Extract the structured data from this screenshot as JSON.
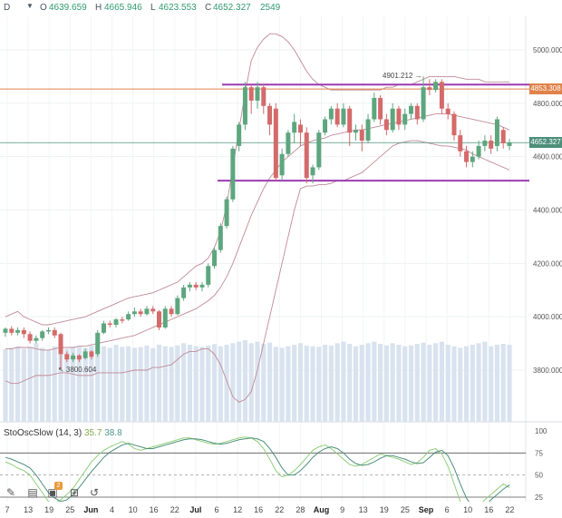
{
  "header": {
    "interval": "D",
    "open_label": "O",
    "open": "4639.659",
    "high_label": "H",
    "high": "4665.946",
    "low_label": "L",
    "low": "4623.553",
    "close_label": "C",
    "close": "4652.327",
    "volume": "2549"
  },
  "price_axis": {
    "ticks": [
      "5000.000",
      "4800.000",
      "4600.000",
      "4400.000",
      "4200.000",
      "4000.000",
      "3800.000"
    ],
    "orange_line_label": "4853.308",
    "current_price_label": "4652.327"
  },
  "annotations": {
    "high_marker": "4901.212",
    "low_marker": "3800.604"
  },
  "oscillator": {
    "name": "StoOscSlow (14, 3)",
    "k_value": "35.7",
    "d_value": "38.8",
    "ticks": [
      "100",
      "75",
      "50",
      "25"
    ]
  },
  "x_axis": {
    "labels": [
      {
        "text": "7",
        "bold": false
      },
      {
        "text": "13",
        "bold": false
      },
      {
        "text": "19",
        "bold": false
      },
      {
        "text": "25",
        "bold": false
      },
      {
        "text": "Jun",
        "bold": true
      },
      {
        "text": "4",
        "bold": false
      },
      {
        "text": "10",
        "bold": false
      },
      {
        "text": "16",
        "bold": false
      },
      {
        "text": "22",
        "bold": false
      },
      {
        "text": "Jul",
        "bold": true
      },
      {
        "text": "6",
        "bold": false
      },
      {
        "text": "12",
        "bold": false
      },
      {
        "text": "16",
        "bold": false
      },
      {
        "text": "22",
        "bold": false
      },
      {
        "text": "28",
        "bold": false
      },
      {
        "text": "Aug",
        "bold": true
      },
      {
        "text": "9",
        "bold": false
      },
      {
        "text": "13",
        "bold": false
      },
      {
        "text": "19",
        "bold": false
      },
      {
        "text": "25",
        "bold": false
      },
      {
        "text": "Sep",
        "bold": true
      },
      {
        "text": "6",
        "bold": false
      },
      {
        "text": "10",
        "bold": false
      },
      {
        "text": "16",
        "bold": false
      },
      {
        "text": "22",
        "bold": false
      }
    ]
  },
  "toolbar": {
    "icons": [
      "pencil-icon",
      "layers-icon",
      "image-icon",
      "crop-icon",
      "undo-icon"
    ],
    "badge": "2"
  },
  "colors": {
    "up": "#5da67e",
    "down": "#d46a6a",
    "volume": "#d9e3ef",
    "bollinger": "#c08a96",
    "channel": "#9c3bb0",
    "orange_line": "#e0824a",
    "current_line": "#4d8f7a",
    "k_line": "#8fcf7a",
    "d_line": "#4d8f7a"
  },
  "chart_data": {
    "type": "candlestick",
    "price_range": [
      3620,
      5120
    ],
    "horizontal_lines": {
      "resistance": 4870,
      "support": 4510,
      "reference": 4853.308,
      "current": 4652.327
    },
    "candles": [
      [
        3940,
        3955,
        3925,
        3960
      ],
      [
        3955,
        3940,
        3930,
        3965
      ],
      [
        3940,
        3950,
        3930,
        3960
      ],
      [
        3950,
        3935,
        3920,
        3960
      ],
      [
        3935,
        3910,
        3900,
        3945
      ],
      [
        3910,
        3920,
        3900,
        3930
      ],
      [
        3920,
        3945,
        3910,
        3950
      ],
      [
        3945,
        3950,
        3935,
        3960
      ],
      [
        3950,
        3930,
        3920,
        3960
      ],
      [
        3935,
        3860,
        3800,
        3940
      ],
      [
        3860,
        3840,
        3830,
        3870
      ],
      [
        3840,
        3855,
        3830,
        3865
      ],
      [
        3855,
        3840,
        3830,
        3860
      ],
      [
        3845,
        3870,
        3840,
        3880
      ],
      [
        3870,
        3850,
        3840,
        3875
      ],
      [
        3860,
        3940,
        3850,
        3950
      ],
      [
        3940,
        3975,
        3935,
        3985
      ],
      [
        3975,
        3970,
        3960,
        3985
      ],
      [
        3970,
        3990,
        3960,
        3995
      ],
      [
        3990,
        3985,
        3975,
        4000
      ],
      [
        3990,
        4010,
        3985,
        4020
      ],
      [
        4010,
        4020,
        4000,
        4035
      ],
      [
        4020,
        4010,
        4000,
        4030
      ],
      [
        4010,
        4030,
        4005,
        4040
      ],
      [
        4030,
        4020,
        4010,
        4040
      ],
      [
        4020,
        3960,
        3950,
        4025
      ],
      [
        3960,
        4030,
        3955,
        4040
      ],
      [
        4030,
        4010,
        4000,
        4040
      ],
      [
        4010,
        4070,
        4005,
        4080
      ],
      [
        4070,
        4110,
        4060,
        4120
      ],
      [
        4110,
        4120,
        4095,
        4130
      ],
      [
        4120,
        4110,
        4100,
        4130
      ],
      [
        4110,
        4120,
        4095,
        4130
      ],
      [
        4120,
        4190,
        4110,
        4200
      ],
      [
        4190,
        4250,
        4180,
        4260
      ],
      [
        4250,
        4340,
        4240,
        4350
      ],
      [
        4340,
        4440,
        4330,
        4450
      ],
      [
        4440,
        4630,
        4430,
        4640
      ],
      [
        4640,
        4720,
        4620,
        4730
      ],
      [
        4720,
        4860,
        4700,
        4880
      ],
      [
        4860,
        4810,
        4760,
        4870
      ],
      [
        4810,
        4860,
        4780,
        4880
      ],
      [
        4860,
        4790,
        4760,
        4870
      ],
      [
        4790,
        4720,
        4680,
        4800
      ],
      [
        4780,
        4520,
        4510,
        4800
      ],
      [
        4530,
        4610,
        4510,
        4630
      ],
      [
        4610,
        4690,
        4600,
        4700
      ],
      [
        4690,
        4730,
        4650,
        4760
      ],
      [
        4720,
        4690,
        4640,
        4740
      ],
      [
        4690,
        4520,
        4500,
        4710
      ],
      [
        4530,
        4560,
        4500,
        4570
      ],
      [
        4560,
        4690,
        4550,
        4700
      ],
      [
        4690,
        4740,
        4680,
        4750
      ],
      [
        4740,
        4780,
        4720,
        4790
      ],
      [
        4780,
        4720,
        4710,
        4800
      ],
      [
        4720,
        4780,
        4710,
        4800
      ],
      [
        4780,
        4690,
        4640,
        4790
      ],
      [
        4690,
        4700,
        4660,
        4720
      ],
      [
        4700,
        4660,
        4620,
        4720
      ],
      [
        4660,
        4740,
        4650,
        4760
      ],
      [
        4740,
        4820,
        4730,
        4840
      ],
      [
        4820,
        4740,
        4720,
        4830
      ],
      [
        4740,
        4700,
        4680,
        4760
      ],
      [
        4700,
        4780,
        4690,
        4800
      ],
      [
        4780,
        4720,
        4700,
        4790
      ],
      [
        4720,
        4760,
        4700,
        4780
      ],
      [
        4760,
        4790,
        4740,
        4800
      ],
      [
        4790,
        4740,
        4720,
        4800
      ],
      [
        4740,
        4860,
        4730,
        4901
      ],
      [
        4860,
        4850,
        4830,
        4890
      ],
      [
        4850,
        4880,
        4840,
        4890
      ],
      [
        4880,
        4780,
        4760,
        4890
      ],
      [
        4780,
        4760,
        4740,
        4800
      ],
      [
        4760,
        4680,
        4660,
        4770
      ],
      [
        4680,
        4620,
        4600,
        4700
      ],
      [
        4620,
        4580,
        4560,
        4640
      ],
      [
        4580,
        4600,
        4560,
        4620
      ],
      [
        4600,
        4640,
        4590,
        4660
      ],
      [
        4640,
        4660,
        4620,
        4680
      ],
      [
        4660,
        4630,
        4610,
        4680
      ],
      [
        4640,
        4740,
        4620,
        4750
      ],
      [
        4700,
        4650,
        4630,
        4710
      ],
      [
        4640,
        4652,
        4624,
        4666
      ]
    ],
    "volume": [
      2400,
      2450,
      2500,
      2420,
      2480,
      2600,
      2450,
      2380,
      2500,
      2550,
      2420,
      2480,
      2500,
      2450,
      2520,
      2480,
      2500,
      2450,
      2550,
      2480,
      2500,
      2450,
      2470,
      2520,
      2440,
      2550,
      2500,
      2480,
      2530,
      2600,
      2550,
      2500,
      2480,
      2520,
      2570,
      2500,
      2550,
      2600,
      2650,
      2700,
      2600,
      2650,
      2580,
      2620,
      2480,
      2450,
      2500,
      2550,
      2600,
      2520,
      2500,
      2480,
      2550,
      2520,
      2600,
      2650,
      2580,
      2500,
      2550,
      2600,
      2650,
      2580,
      2530,
      2600,
      2550,
      2500,
      2530,
      2580,
      2620,
      2550,
      2600,
      2650,
      2550,
      2500,
      2450,
      2500,
      2550,
      2600,
      2650,
      2500,
      2550,
      2580,
      2549
    ],
    "bollinger_upper": [
      4000,
      4010,
      4020,
      4000,
      3990,
      3980,
      3970,
      3970,
      3975,
      3980,
      3985,
      3990,
      3995,
      4000,
      4010,
      4020,
      4030,
      4040,
      4050,
      4060,
      4070,
      4075,
      4080,
      4085,
      4090,
      4100,
      4110,
      4120,
      4130,
      4150,
      4170,
      4190,
      4200,
      4220,
      4260,
      4320,
      4420,
      4560,
      4700,
      4840,
      4960,
      5010,
      5040,
      5060,
      5060,
      5050,
      5030,
      5000,
      4960,
      4920,
      4890,
      4870,
      4860,
      4850,
      4850,
      4850,
      4850,
      4850,
      4850,
      4850,
      4850,
      4850,
      4860,
      4860,
      4870,
      4870,
      4870,
      4880,
      4890,
      4900,
      4900,
      4900,
      4900,
      4900,
      4895,
      4890,
      4890,
      4890,
      4880,
      4880,
      4880,
      4880,
      4880
    ],
    "bollinger_middle": [
      3880,
      3880,
      3885,
      3885,
      3885,
      3880,
      3875,
      3875,
      3880,
      3885,
      3885,
      3885,
      3890,
      3890,
      3895,
      3900,
      3905,
      3910,
      3915,
      3920,
      3925,
      3930,
      3940,
      3950,
      3960,
      3970,
      3980,
      3990,
      4000,
      4010,
      4020,
      4030,
      4045,
      4060,
      4080,
      4110,
      4150,
      4200,
      4260,
      4320,
      4380,
      4430,
      4480,
      4520,
      4550,
      4580,
      4600,
      4620,
      4640,
      4650,
      4660,
      4665,
      4670,
      4680,
      4685,
      4690,
      4695,
      4700,
      4700,
      4705,
      4710,
      4715,
      4720,
      4725,
      4730,
      4735,
      4740,
      4745,
      4750,
      4755,
      4760,
      4760,
      4760,
      4755,
      4750,
      4745,
      4740,
      4735,
      4730,
      4725,
      4720,
      4710,
      4700
    ],
    "bollinger_lower": [
      3760,
      3750,
      3750,
      3760,
      3770,
      3780,
      3780,
      3780,
      3785,
      3790,
      3790,
      3785,
      3780,
      3780,
      3780,
      3790,
      3790,
      3790,
      3790,
      3790,
      3795,
      3800,
      3800,
      3800,
      3810,
      3810,
      3815,
      3820,
      3840,
      3860,
      3870,
      3870,
      3880,
      3880,
      3860,
      3820,
      3760,
      3700,
      3680,
      3690,
      3720,
      3800,
      3900,
      4000,
      4100,
      4200,
      4300,
      4400,
      4480,
      4490,
      4490,
      4495,
      4495,
      4500,
      4510,
      4510,
      4520,
      4530,
      4540,
      4560,
      4580,
      4600,
      4620,
      4640,
      4650,
      4655,
      4660,
      4660,
      4655,
      4650,
      4645,
      4640,
      4640,
      4635,
      4630,
      4625,
      4610,
      4600,
      4590,
      4580,
      4570,
      4560,
      4550
    ],
    "stoch_k": [
      65,
      62,
      58,
      55,
      50,
      40,
      30,
      20,
      18,
      22,
      28,
      35,
      45,
      55,
      65,
      72,
      78,
      82,
      85,
      88,
      85,
      80,
      78,
      80,
      82,
      84,
      86,
      88,
      90,
      92,
      92,
      90,
      88,
      86,
      85,
      86,
      88,
      90,
      92,
      93,
      92,
      88,
      80,
      68,
      55,
      48,
      50,
      55,
      62,
      70,
      78,
      82,
      84,
      80,
      74,
      68,
      62,
      60,
      62,
      66,
      70,
      74,
      72,
      70,
      68,
      65,
      62,
      64,
      70,
      78,
      80,
      74,
      60,
      40,
      20,
      12,
      10,
      15,
      22,
      28,
      34,
      40,
      35.7
    ],
    "stoch_d": [
      70,
      68,
      65,
      62,
      58,
      50,
      40,
      30,
      24,
      20,
      22,
      28,
      36,
      45,
      54,
      62,
      70,
      76,
      80,
      84,
      86,
      84,
      82,
      80,
      80,
      82,
      84,
      86,
      88,
      90,
      91,
      91,
      90,
      88,
      86,
      85,
      86,
      88,
      90,
      91,
      92,
      91,
      88,
      80,
      70,
      58,
      50,
      50,
      55,
      62,
      70,
      76,
      80,
      82,
      80,
      75,
      68,
      63,
      61,
      62,
      65,
      69,
      72,
      72,
      70,
      68,
      65,
      63,
      64,
      70,
      76,
      78,
      72,
      58,
      40,
      24,
      14,
      12,
      15,
      22,
      28,
      34,
      38.8
    ]
  }
}
